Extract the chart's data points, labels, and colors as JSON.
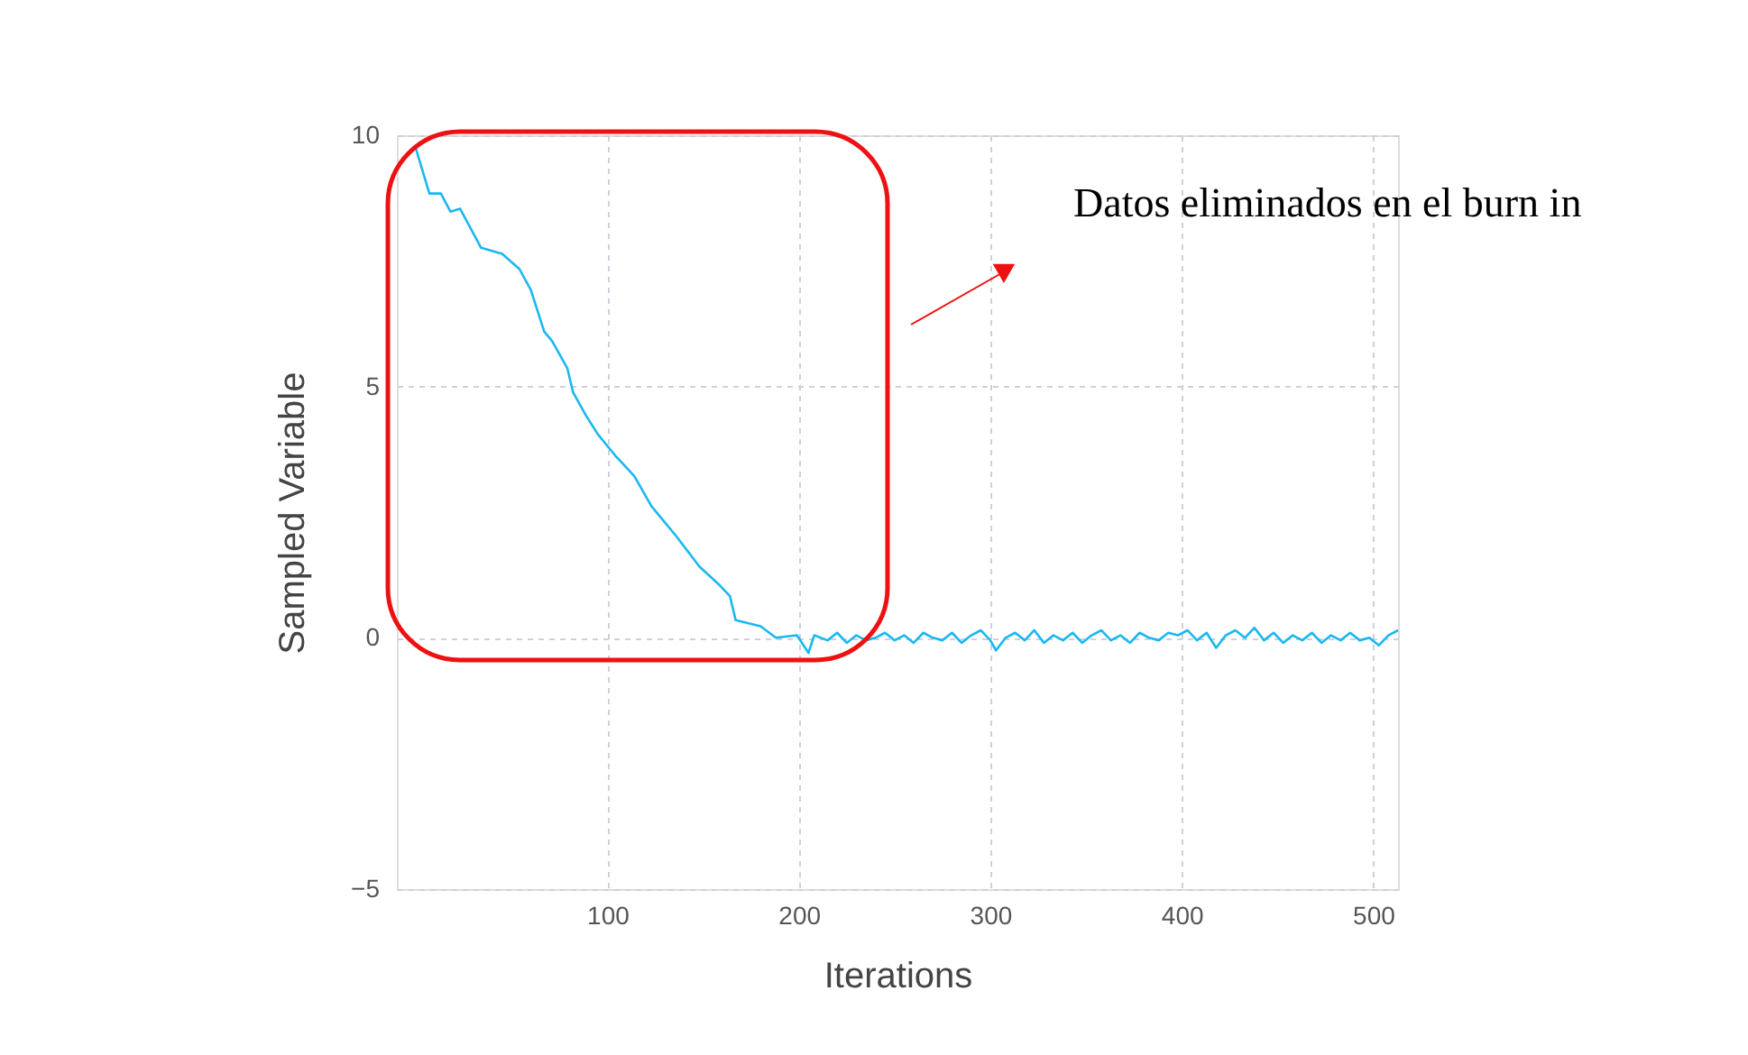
{
  "chart_data": {
    "type": "line",
    "xlabel": "Iterations",
    "ylabel": "Sampled Variable",
    "annotations": [
      "Datos eliminados en el burn in"
    ],
    "xlim": [
      -10,
      513
    ],
    "xticks": [
      100,
      200,
      300,
      400,
      500
    ],
    "ylim": [
      -5,
      10
    ],
    "yticks": [
      -5,
      0,
      5,
      10
    ],
    "grid": true,
    "series": [
      {
        "color": "#1ab8f0",
        "x": [
          0,
          7,
          13,
          18,
          23,
          34,
          45,
          54,
          60,
          67,
          71,
          79,
          82,
          89,
          95,
          104,
          114,
          123,
          136,
          148,
          158,
          164,
          167,
          180,
          188,
          199,
          205,
          208,
          215,
          220,
          225,
          230,
          235,
          240,
          245,
          250,
          255,
          260,
          265,
          270,
          275,
          280,
          285,
          290,
          295,
          300,
          303,
          308,
          313,
          318,
          323,
          328,
          333,
          338,
          343,
          348,
          353,
          358,
          363,
          368,
          373,
          378,
          383,
          388,
          393,
          398,
          403,
          408,
          413,
          418,
          423,
          428,
          433,
          438,
          443,
          448,
          453,
          458,
          463,
          468,
          473,
          478,
          483,
          488,
          493,
          498,
          503,
          508,
          513
        ],
        "values": [
          9.73,
          8.84,
          8.84,
          8.48,
          8.54,
          7.76,
          7.64,
          7.34,
          6.92,
          6.09,
          5.91,
          5.37,
          4.89,
          4.41,
          4.05,
          3.63,
          3.22,
          2.62,
          2.02,
          1.42,
          1.07,
          0.83,
          0.35,
          0.23,
          0.0,
          0.05,
          -0.3,
          0.05,
          -0.05,
          0.1,
          -0.1,
          0.05,
          -0.05,
          0.0,
          0.1,
          -0.05,
          0.05,
          -0.1,
          0.1,
          0.0,
          -0.05,
          0.1,
          -0.1,
          0.05,
          0.15,
          -0.05,
          -0.25,
          0.0,
          0.1,
          -0.05,
          0.15,
          -0.1,
          0.05,
          -0.05,
          0.1,
          -0.1,
          0.05,
          0.15,
          -0.05,
          0.05,
          -0.1,
          0.1,
          0.0,
          -0.05,
          0.1,
          0.05,
          0.15,
          -0.05,
          0.1,
          -0.2,
          0.05,
          0.15,
          0.0,
          0.2,
          -0.05,
          0.1,
          -0.1,
          0.05,
          -0.05,
          0.1,
          -0.1,
          0.05,
          -0.05,
          0.1,
          -0.05,
          0.0,
          -0.15,
          0.05,
          0.15
        ]
      }
    ]
  }
}
